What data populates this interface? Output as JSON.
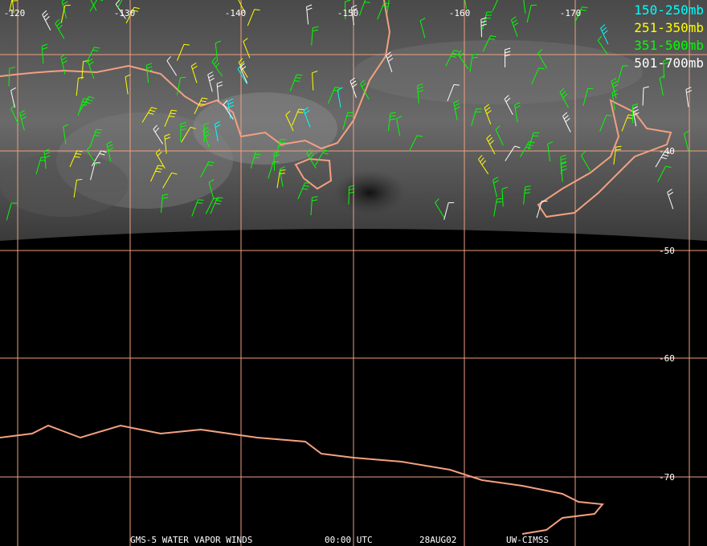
{
  "legend": [
    {
      "label": "150-250mb",
      "color": "#00ffff"
    },
    {
      "label": "251-350mb",
      "color": "#ffff00"
    },
    {
      "label": "351-500mb",
      "color": "#00ff00"
    },
    {
      "label": "501-700mb",
      "color": "#ffffff"
    }
  ],
  "longitude_labels": [
    "-120",
    "-130",
    "-140",
    "-150",
    "-160",
    "-170"
  ],
  "latitude_labels": [
    "-40",
    "-50",
    "-60",
    "-70"
  ],
  "footer": {
    "product": "GMS-5 WATER VAPOR WINDS",
    "time": "00:00 UTC",
    "date": "28AUG02",
    "source": "UW-CIMSS"
  }
}
